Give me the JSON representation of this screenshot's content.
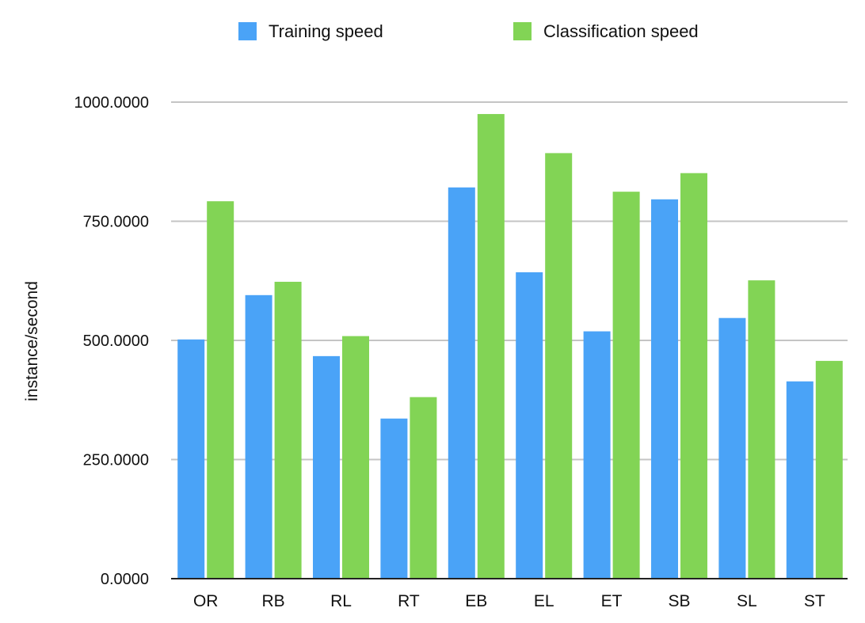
{
  "chart_data": {
    "type": "bar",
    "title": "",
    "xlabel": "",
    "ylabel": "instance/second",
    "ylim": [
      0,
      1000
    ],
    "yticks": [
      0,
      250,
      500,
      750,
      1000
    ],
    "ytick_labels": [
      "0.0000",
      "250.0000",
      "500.0000",
      "750.0000",
      "1000.0000"
    ],
    "grid": true,
    "legend_position": "top",
    "categories": [
      "OR",
      "RB",
      "RL",
      "RT",
      "EB",
      "EL",
      "ET",
      "SB",
      "SL",
      "ST"
    ],
    "series": [
      {
        "name": "Training speed",
        "color": "#4aa3f7",
        "values": [
          502,
          595,
          467,
          336,
          821,
          643,
          519,
          796,
          547,
          414
        ]
      },
      {
        "name": "Classification speed",
        "color": "#82d455",
        "values": [
          792,
          623,
          509,
          381,
          975,
          893,
          812,
          851,
          626,
          457
        ]
      }
    ]
  }
}
